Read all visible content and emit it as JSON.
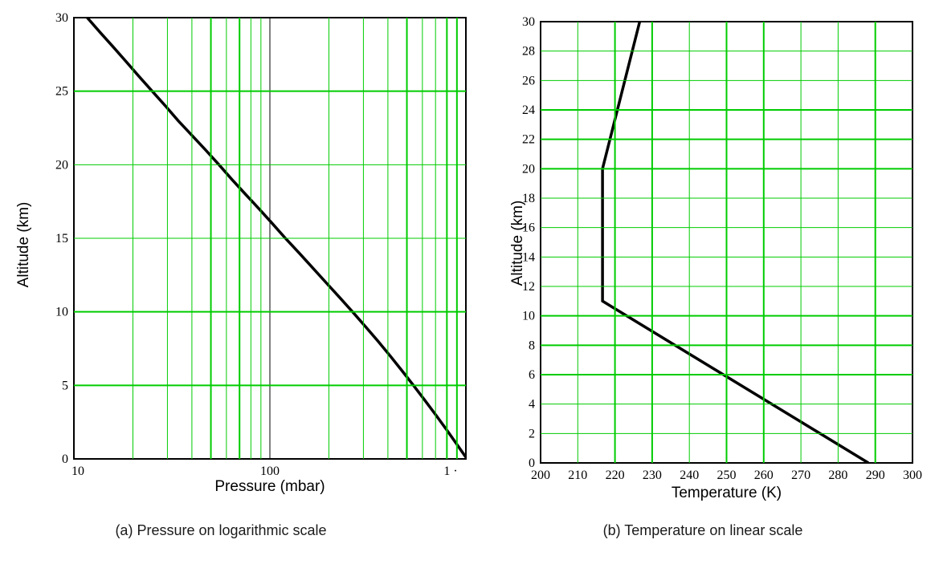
{
  "captions": {
    "a": "(a) Pressure on logarithmic scale",
    "b": "(b) Temperature on linear scale"
  },
  "colors": {
    "grid": "#00CC00",
    "frame": "#000000",
    "data_line": "#000000",
    "marker_line": "#000000",
    "background": "#FFFFFF"
  },
  "chart_data": [
    {
      "id": "pressure",
      "type": "line",
      "title": "",
      "xlabel": "Pressure (mbar)",
      "ylabel": "Altitude (km)",
      "xscale": "log",
      "xlim": [
        10,
        1000
      ],
      "ylim": [
        0,
        30
      ],
      "grid": true,
      "legend": "none",
      "x_ticks": [
        {
          "value": 10,
          "label": "10"
        },
        {
          "value": 100,
          "label": "100"
        },
        {
          "value": 1000,
          "label": "1 ·"
        }
      ],
      "y_ticks": [
        {
          "value": 0,
          "label": "0"
        },
        {
          "value": 5,
          "label": "5"
        },
        {
          "value": 10,
          "label": "10"
        },
        {
          "value": 15,
          "label": "15"
        },
        {
          "value": 20,
          "label": "20"
        },
        {
          "value": 25,
          "label": "25"
        },
        {
          "value": 30,
          "label": "30"
        }
      ],
      "series": [
        {
          "name": "standard-atmosphere-pressure-profile",
          "x_units": "mbar",
          "y_units": "km",
          "points": [
            [
              1013,
              0
            ],
            [
              899,
              1
            ],
            [
              795,
              2
            ],
            [
              701,
              3
            ],
            [
              616,
              4
            ],
            [
              540,
              5
            ],
            [
              472,
              6
            ],
            [
              411,
              7
            ],
            [
              356,
              8
            ],
            [
              307,
              9
            ],
            [
              264,
              10
            ],
            [
              226,
              11
            ],
            [
              193,
              12
            ],
            [
              165,
              13
            ],
            [
              141,
              14
            ],
            [
              120,
              15
            ],
            [
              103,
              16
            ],
            [
              88,
              17
            ],
            [
              75,
              18
            ],
            [
              64,
              19
            ],
            [
              55,
              20
            ],
            [
              47,
              21
            ],
            [
              40,
              22
            ],
            [
              34,
              23
            ],
            [
              29.3,
              24
            ],
            [
              25.1,
              25
            ],
            [
              21.5,
              26
            ],
            [
              18.5,
              27
            ],
            [
              15.9,
              28
            ],
            [
              13.6,
              29
            ],
            [
              11.7,
              30
            ]
          ]
        }
      ]
    },
    {
      "id": "temperature",
      "type": "line",
      "title": "",
      "xlabel": "Temperature (K)",
      "ylabel": "Altitude (km)",
      "xscale": "linear",
      "xlim": [
        200,
        300
      ],
      "ylim": [
        0,
        30
      ],
      "grid": true,
      "legend": "none",
      "x_ticks": [
        {
          "value": 200,
          "label": "200"
        },
        {
          "value": 210,
          "label": "210"
        },
        {
          "value": 220,
          "label": "220"
        },
        {
          "value": 230,
          "label": "230"
        },
        {
          "value": 240,
          "label": "240"
        },
        {
          "value": 250,
          "label": "250"
        },
        {
          "value": 260,
          "label": "260"
        },
        {
          "value": 270,
          "label": "270"
        },
        {
          "value": 280,
          "label": "280"
        },
        {
          "value": 290,
          "label": "290"
        },
        {
          "value": 300,
          "label": "300"
        }
      ],
      "y_ticks": [
        {
          "value": 0,
          "label": "0"
        },
        {
          "value": 2,
          "label": "2"
        },
        {
          "value": 4,
          "label": "4"
        },
        {
          "value": 6,
          "label": "6"
        },
        {
          "value": 8,
          "label": "8"
        },
        {
          "value": 10,
          "label": "10"
        },
        {
          "value": 12,
          "label": "12"
        },
        {
          "value": 14,
          "label": "14"
        },
        {
          "value": 16,
          "label": "16"
        },
        {
          "value": 18,
          "label": "18"
        },
        {
          "value": 20,
          "label": "20"
        },
        {
          "value": 22,
          "label": "22"
        },
        {
          "value": 24,
          "label": "24"
        },
        {
          "value": 26,
          "label": "26"
        },
        {
          "value": 28,
          "label": "28"
        },
        {
          "value": 30,
          "label": "30"
        }
      ],
      "series": [
        {
          "name": "standard-atmosphere-temperature-profile",
          "x_units": "K",
          "y_units": "km",
          "points": [
            [
              288.15,
              0
            ],
            [
              216.65,
              11
            ],
            [
              216.65,
              20
            ],
            [
              226.65,
              30
            ]
          ]
        }
      ]
    }
  ]
}
